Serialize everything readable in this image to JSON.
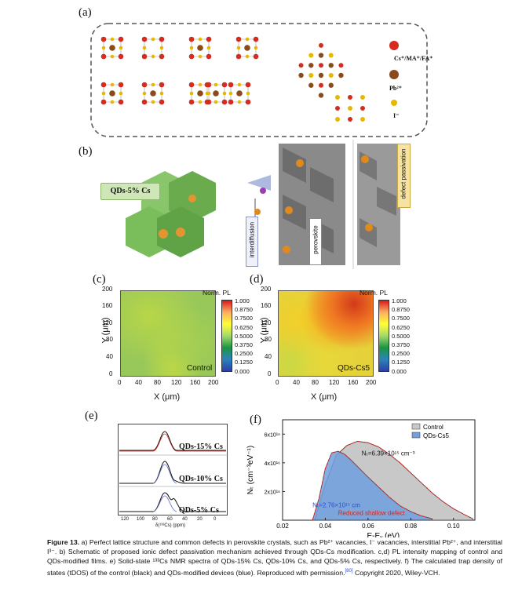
{
  "figure": {
    "panels": {
      "a": "(a)",
      "b": "(b)",
      "c": "(c)",
      "d": "(d)",
      "e": "(e)",
      "f": "(f)"
    },
    "panel_a": {
      "legend": [
        {
          "label": "Cs⁺/MA⁺/FA⁺",
          "color": "#d62b1f"
        },
        {
          "label": "Pb²⁺",
          "color": "#8a4a1c"
        },
        {
          "label": "I⁻",
          "color": "#e6b800"
        }
      ]
    },
    "panel_b": {
      "label_qds": "QDs-5% Cs",
      "label_interdiffusion": "interdiffusion",
      "label_perovskite": "perovskite",
      "label_defect": "defect passivation"
    },
    "panel_c": {
      "title": "Norm. PL",
      "corner_label": "Control",
      "xlabel": "X (μm)",
      "ylabel": "Y (μm)",
      "xticks": [
        "0",
        "40",
        "80",
        "120",
        "160",
        "200"
      ],
      "yticks": [
        "0",
        "40",
        "80",
        "120",
        "160",
        "200"
      ],
      "colorbar_ticks": [
        "1.000",
        "0.8750",
        "0.7500",
        "0.6250",
        "0.5000",
        "0.3750",
        "0.2500",
        "0.1250",
        "0.000"
      ]
    },
    "panel_d": {
      "title": "Norm. PL",
      "corner_label": "QDs-Cs5",
      "xlabel": "X (μm)",
      "ylabel": "Y (μm)",
      "xticks": [
        "0",
        "40",
        "80",
        "120",
        "160",
        "200"
      ],
      "yticks": [
        "0",
        "40",
        "80",
        "120",
        "160",
        "200"
      ],
      "colorbar_ticks": [
        "1.000",
        "0.8750",
        "0.7500",
        "0.6250",
        "0.5000",
        "0.3750",
        "0.2500",
        "0.1250",
        "0.000"
      ]
    },
    "panel_e": {
      "labels": [
        "QDs-15% Cs",
        "QDs-10% Cs",
        "QDs-5% Cs"
      ],
      "xticks": [
        "120",
        "100",
        "80",
        "60",
        "40",
        "20",
        "0"
      ],
      "xlabel": "δ(¹³³Cs) (ppm)"
    },
    "caption": {
      "lead": "Figure 13.",
      "text": " a) Perfect lattice structure and common defects in perovskite crystals, such as Pb²⁺ vacancies, I⁻ vacancies, interstitial Pb²⁺, and interstitial I³⁻. b) Schematic of proposed ionic defect passivation mechanism achieved through QDs-Cs modification. c,d) PL intensity mapping of control and QDs-modified films. e) Solid-state ¹³³Cs NMR spectra of QDs-15% Cs, QDs-10% Cs, and QDs-5% Cs, respectively. f) The calculated trap density of states (tDOS) of the control (black) and QDs-modified devices (blue). Reproduced with permission.",
      "ref": "[80]",
      "tail": " Copyright 2020, Wiley-VCH."
    }
  },
  "chart_data": [
    {
      "type": "area",
      "panel": "f",
      "xlabel": "E-Eᵥ (eV)",
      "ylabel": "Nₜ (cm⁻³eV⁻¹)",
      "xlim": [
        0.02,
        0.11
      ],
      "ylim": [
        0,
        7e+16
      ],
      "xticks": [
        "0.02",
        "0.04",
        "0.06",
        "0.08",
        "0.10"
      ],
      "yticks": [
        "2x10¹⁶",
        "4x10¹⁶",
        "6x10¹⁶"
      ],
      "ytick_values": [
        2e+16,
        4e+16,
        6e+16
      ],
      "legend": [
        "Control",
        "QDs-Cs5"
      ],
      "series": [
        {
          "name": "Control",
          "fill": "#c8c8c8",
          "x": [
            0.035,
            0.04,
            0.045,
            0.05,
            0.055,
            0.06,
            0.065,
            0.07,
            0.075,
            0.08,
            0.085,
            0.09,
            0.095,
            0.1,
            0.105,
            0.109
          ],
          "y": [
            0,
            2.5e+16,
            4.5e+16,
            5.2e+16,
            5.5e+16,
            5.4e+16,
            5.1e+16,
            4.6e+16,
            4e+16,
            3.3e+16,
            2.6e+16,
            1.9e+16,
            1.3e+16,
            8000000000000000.0,
            4000000000000000.0,
            1000000000000000.0
          ]
        },
        {
          "name": "QDs-Cs5",
          "fill": "#6fa0e0",
          "x": [
            0.034,
            0.037,
            0.04,
            0.043,
            0.046,
            0.049,
            0.052,
            0.056,
            0.06,
            0.065,
            0.07,
            0.075,
            0.08,
            0.085,
            0.09
          ],
          "y": [
            0,
            1.5e+16,
            3.6e+16,
            4.7e+16,
            4.8e+16,
            4.6e+16,
            4.2e+16,
            3.6e+16,
            3e+16,
            2.3e+16,
            1.6e+16,
            1e+16,
            6000000000000000.0,
            3000000000000000.0,
            1000000000000000.0
          ]
        }
      ],
      "annotations": [
        {
          "text": "Nₜ=6.39×10¹⁵ cm⁻³",
          "color": "#111111"
        },
        {
          "text": "Nₜ=2.76×10¹⁵ cm",
          "color": "#2a4fd0"
        },
        {
          "text": "Reduced shallow defect",
          "color": "#d0281e"
        }
      ]
    }
  ]
}
